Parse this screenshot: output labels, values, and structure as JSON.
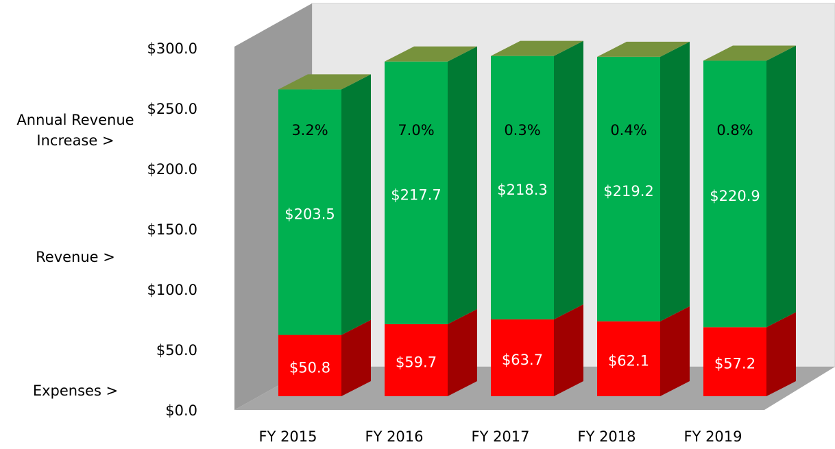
{
  "chart_data": {
    "type": "bar3d_stacked",
    "categories": [
      "FY 2015",
      "FY 2016",
      "FY 2017",
      "FY 2018",
      "FY 2019"
    ],
    "series": [
      {
        "name": "Expenses >",
        "color": "#ff0000",
        "values": [
          50.8,
          59.7,
          63.7,
          62.1,
          57.2
        ],
        "value_labels": [
          "$50.8",
          "$59.7",
          "$63.7",
          "$62.1",
          "$57.2"
        ]
      },
      {
        "name": "Revenue >",
        "color": "#00b050",
        "values": [
          203.5,
          217.7,
          218.3,
          219.2,
          220.9
        ],
        "value_labels": [
          "$203.5",
          "$217.7",
          "$218.3",
          "$219.2",
          "$220.9"
        ]
      }
    ],
    "annual_increase": {
      "name": "Annual Revenue Increase >",
      "values": [
        3.2,
        7.0,
        0.3,
        0.4,
        0.8
      ],
      "value_labels": [
        "3.2%",
        "7.0%",
        "0.3%",
        "0.4%",
        "0.8%"
      ]
    },
    "ylim": [
      0,
      300
    ],
    "yticks": [
      {
        "value": 0,
        "label": "$0.0"
      },
      {
        "value": 50,
        "label": "$50.0"
      },
      {
        "value": 100,
        "label": "$100.0"
      },
      {
        "value": 150,
        "label": "$150.0"
      },
      {
        "value": 200,
        "label": "$200.0"
      },
      {
        "value": 250,
        "label": "$250.0"
      },
      {
        "value": 300,
        "label": "$300.0"
      }
    ],
    "grid": false
  }
}
